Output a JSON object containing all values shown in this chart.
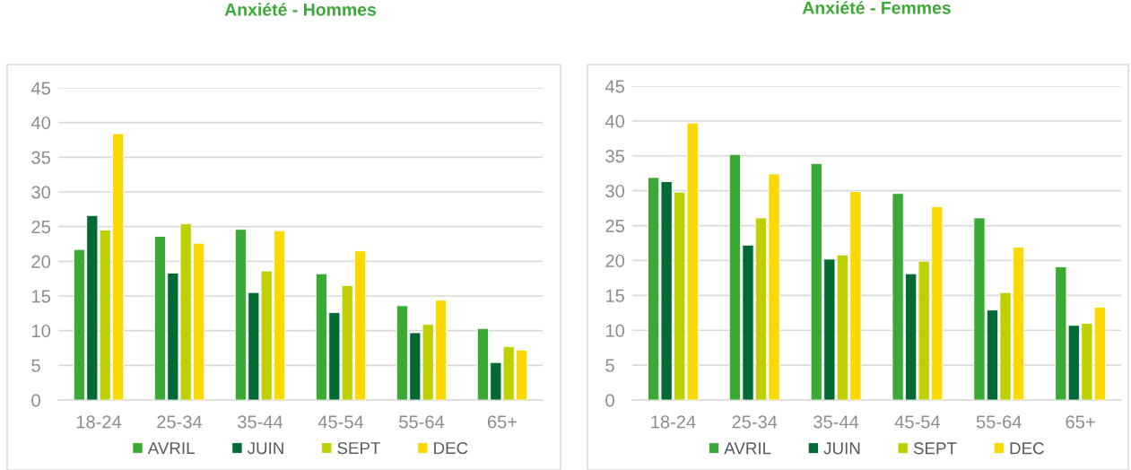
{
  "chart_data": [
    {
      "type": "bar",
      "title": "Anxiété - Hommes",
      "categories": [
        "18-24",
        "25-34",
        "35-44",
        "45-54",
        "55-64",
        "65+"
      ],
      "series": [
        {
          "name": "AVRIL",
          "color": "#3aaa35",
          "values": [
            21.7,
            23.6,
            24.6,
            18.2,
            13.6,
            10.3
          ]
        },
        {
          "name": "JUIN",
          "color": "#006934",
          "values": [
            26.6,
            18.3,
            15.5,
            12.6,
            9.7,
            5.4
          ]
        },
        {
          "name": "SEPT",
          "color": "#bed000",
          "values": [
            24.5,
            25.4,
            18.6,
            16.5,
            10.9,
            7.7
          ]
        },
        {
          "name": "DEC",
          "color": "#fad800",
          "values": [
            38.4,
            22.6,
            24.4,
            21.5,
            14.4,
            7.2
          ]
        }
      ],
      "ylim": [
        0,
        45
      ],
      "yticks": [
        0,
        5,
        10,
        15,
        20,
        25,
        30,
        35,
        40,
        45
      ],
      "grid": "y",
      "legend": "bottom"
    },
    {
      "type": "bar",
      "title": "Anxiété - Femmes",
      "categories": [
        "18-24",
        "25-34",
        "35-44",
        "45-54",
        "55-64",
        "65+"
      ],
      "series": [
        {
          "name": "AVRIL",
          "color": "#3aaa35",
          "values": [
            31.9,
            35.2,
            33.9,
            29.6,
            26.1,
            19.1
          ]
        },
        {
          "name": "JUIN",
          "color": "#006934",
          "values": [
            31.3,
            22.2,
            20.2,
            18.1,
            12.9,
            10.7
          ]
        },
        {
          "name": "SEPT",
          "color": "#bed000",
          "values": [
            29.8,
            26.1,
            20.8,
            19.9,
            15.4,
            11.0
          ]
        },
        {
          "name": "DEC",
          "color": "#fad800",
          "values": [
            39.7,
            32.4,
            29.9,
            27.7,
            21.9,
            13.3
          ]
        }
      ],
      "ylim": [
        0,
        45
      ],
      "yticks": [
        0,
        5,
        10,
        15,
        20,
        25,
        30,
        35,
        40,
        45
      ],
      "grid": "y",
      "legend": "bottom"
    }
  ]
}
